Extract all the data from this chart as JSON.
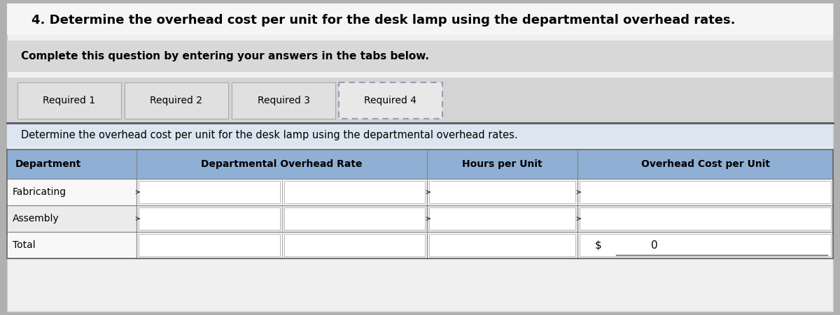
{
  "title": "4. Determine the overhead cost per unit for the desk lamp using the departmental overhead rates.",
  "complete_text": "Complete this question by entering your answers in the tabs below.",
  "tabs": [
    "Required 1",
    "Required 2",
    "Required 3",
    "Required 4"
  ],
  "active_tab": "Required 4",
  "sub_instruction": "Determine the overhead cost per unit for the desk lamp using the departmental overhead rates.",
  "col_headers": [
    "Department",
    "Departmental Overhead Rate",
    "Hours per Unit",
    "Overhead Cost per Unit"
  ],
  "rows": [
    "Fabricating",
    "Assembly",
    "Total"
  ],
  "total_dollar_sign": "$",
  "total_value": "0",
  "bg_outer": "#b0b0b0",
  "bg_main": "#f0f0f0",
  "bg_title_area": "#f5f5f5",
  "bg_complete_bar": "#d8d8d8",
  "bg_tabs_area": "#d8d8d8",
  "bg_sub_instruction": "#e8eef4",
  "header_row_color": "#8fafd4",
  "row_color_odd": "#f8f8f8",
  "row_color_even": "#ececec",
  "white_cell": "#ffffff",
  "border_color": "#888888",
  "title_color": "#000000",
  "tab_border_color": "#aaaaaa",
  "active_tab_border": "#8888cc",
  "table_header_text": "#000000"
}
